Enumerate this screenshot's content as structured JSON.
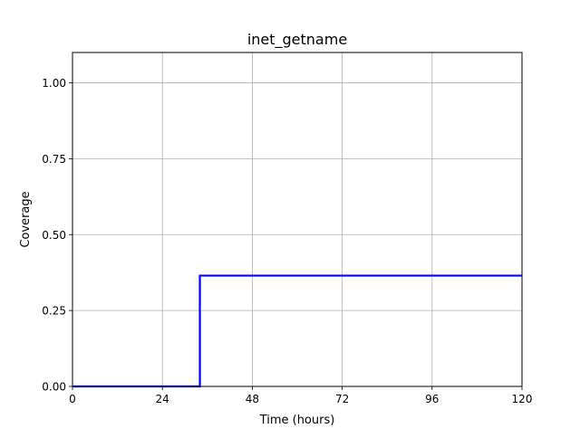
{
  "chart_data": {
    "type": "line",
    "title": "inet_getname",
    "xlabel": "Time (hours)",
    "ylabel": "Coverage",
    "xlim": [
      0,
      120
    ],
    "ylim": [
      0,
      1.1
    ],
    "xticks": [
      0,
      24,
      48,
      72,
      96,
      120
    ],
    "xtick_labels": [
      "0",
      "24",
      "48",
      "72",
      "96",
      "120"
    ],
    "yticks": [
      0,
      0.25,
      0.5,
      0.75,
      1.0
    ],
    "ytick_labels": [
      "0.00",
      "0.25",
      "0.50",
      "0.75",
      "1.00"
    ],
    "grid": true,
    "series": [
      {
        "color": "#0000ff",
        "x": [
          0,
          34,
          34,
          120
        ],
        "y": [
          0,
          0,
          0.365,
          0.365
        ]
      }
    ]
  }
}
